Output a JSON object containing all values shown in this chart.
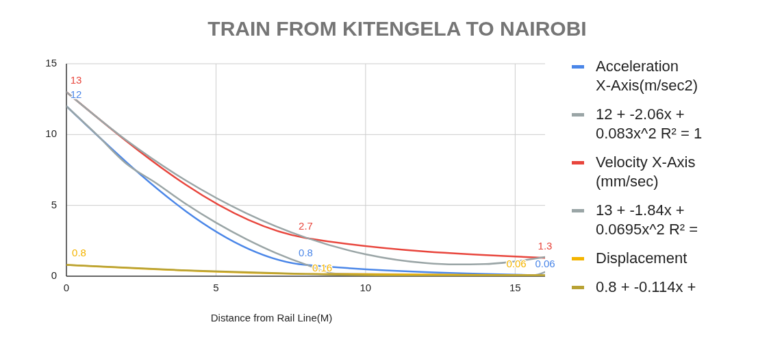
{
  "chart_data": {
    "type": "line",
    "title": "TRAIN FROM KITENGELA TO NAIROBI",
    "xlabel": "Distance from Rail Line(M)",
    "xlim": [
      0,
      16
    ],
    "ylim": [
      0,
      15
    ],
    "xticks": [
      0,
      5,
      10,
      15
    ],
    "yticks": [
      0,
      5,
      10,
      15
    ],
    "grid": true,
    "legend": "right",
    "x": [
      0,
      8,
      16
    ],
    "series": [
      {
        "name": "Acceleration X-Axis(m/sec2)",
        "color": "#4a86e8",
        "values": [
          12,
          0.8,
          0.06
        ],
        "value_labels": [
          "12",
          "0.8",
          "0.06"
        ]
      },
      {
        "name": "12 + -2.06x + 0.083x^2 R² = 1",
        "color": "#9aa5a6",
        "x": [
          0,
          1,
          2,
          3,
          4,
          5,
          6,
          7,
          8,
          9,
          15.6,
          16
        ],
        "values": [
          12,
          10.02,
          7.95,
          6.57,
          5.09,
          3.78,
          2.63,
          1.64,
          0.83,
          0.18,
          0.06,
          0.29
        ]
      },
      {
        "name": "Velocity X-Axis (mm/sec)",
        "color": "#e8453c",
        "values": [
          13,
          2.7,
          1.3
        ],
        "value_labels": [
          "13",
          "2.7",
          "1.3"
        ]
      },
      {
        "name": "13 + -1.84x + 0.0695x^2 R² =",
        "color": "#9aa5a6",
        "x": [
          0,
          2,
          4,
          6,
          8,
          10,
          12,
          13,
          14,
          16
        ],
        "values": [
          13,
          9.6,
          6.75,
          4.46,
          2.73,
          1.55,
          0.93,
          0.83,
          0.86,
          1.35
        ]
      },
      {
        "name": "Displacement",
        "color": "#f4b400",
        "values": [
          0.8,
          0.16,
          0.06
        ],
        "value_labels": [
          "0.8",
          "0.16",
          "0.06"
        ]
      },
      {
        "name": "0.8 + -0.114x +",
        "color": "#b8a234",
        "x": [
          0,
          4,
          8,
          12,
          16
        ],
        "values": [
          0.8,
          0.41,
          0.16,
          0.04,
          0.06
        ]
      }
    ]
  }
}
